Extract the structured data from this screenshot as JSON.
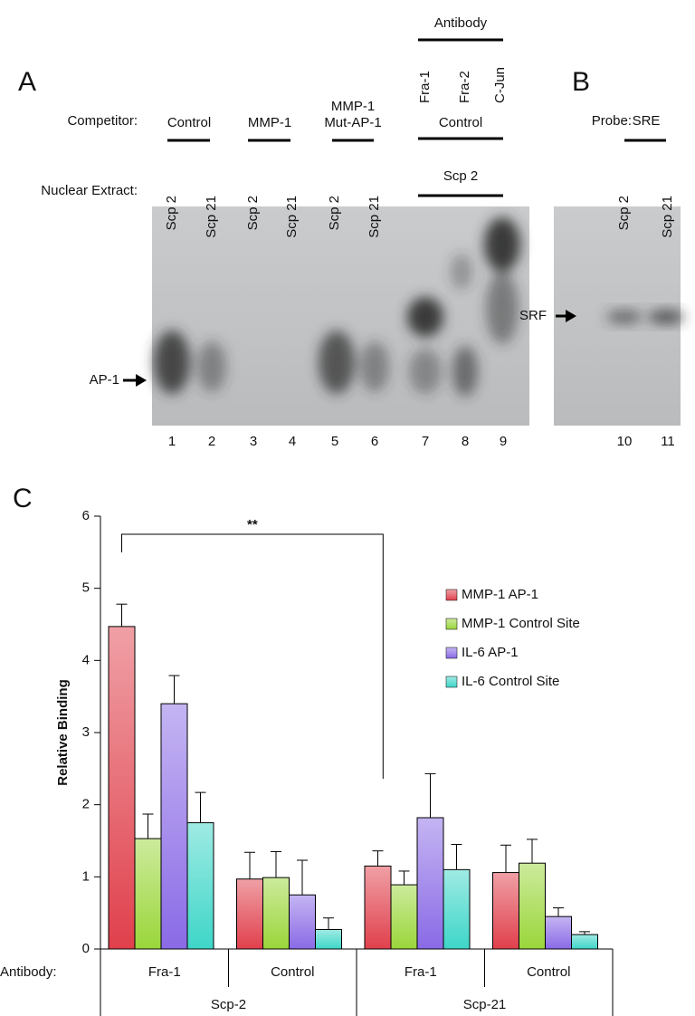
{
  "panel_a": {
    "label": "A",
    "antibody_title": "Antibody",
    "antibodies": [
      "Fra-1",
      "Fra-2",
      "C-Jun"
    ],
    "competitor_label": "Competitor:",
    "competitors": [
      [
        "Control"
      ],
      [
        "MMP-1"
      ],
      [
        "MMP-1",
        "Mut-AP-1"
      ],
      [
        "Control"
      ]
    ],
    "nuclear_extract_label": "Nuclear Extract:",
    "extracts": [
      "Scp 2",
      "Scp 21",
      "Scp 2",
      "Scp 21",
      "Scp 2",
      "Scp 21",
      "Scp 2"
    ],
    "band_label": "AP-1",
    "lanes": [
      "1",
      "2",
      "3",
      "4",
      "5",
      "6",
      "7",
      "8",
      "9"
    ]
  },
  "panel_b": {
    "label": "B",
    "probe_label": "Probe:",
    "probe": "SRE",
    "extracts": [
      "Scp 2",
      "Scp 21"
    ],
    "band_label": "SRF",
    "lanes": [
      "10",
      "11"
    ]
  },
  "chart_data": {
    "type": "bar",
    "panel_label": "C",
    "y_label": "Relative Binding",
    "x_row_label": "Antibody:",
    "significance": "**",
    "categories": [
      "Fra-1",
      "Control",
      "Fra-1",
      "Control"
    ],
    "groups": [
      "Scp-2",
      "Scp-21"
    ],
    "ylim": [
      0,
      6
    ],
    "yticks": [
      0,
      1,
      2,
      3,
      4,
      5,
      6
    ],
    "series": [
      {
        "name": "MMP-1 AP-1",
        "color": "#e0404c",
        "values": [
          4.47,
          0.97,
          1.15,
          1.06
        ],
        "errors": [
          0.31,
          0.37,
          0.21,
          0.38
        ]
      },
      {
        "name": "MMP-1 Control Site",
        "color": "#9ad63a",
        "values": [
          1.53,
          0.99,
          0.89,
          1.19
        ],
        "errors": [
          0.34,
          0.36,
          0.19,
          0.33
        ]
      },
      {
        "name": "IL-6 AP-1",
        "color": "#8a6ae6",
        "values": [
          3.4,
          0.75,
          1.82,
          0.45
        ],
        "errors": [
          0.39,
          0.48,
          0.61,
          0.12
        ]
      },
      {
        "name": "IL-6 Control Site",
        "color": "#3ed6c8",
        "values": [
          1.75,
          0.27,
          1.1,
          0.2
        ],
        "errors": [
          0.42,
          0.16,
          0.35,
          0.04
        ]
      }
    ]
  }
}
